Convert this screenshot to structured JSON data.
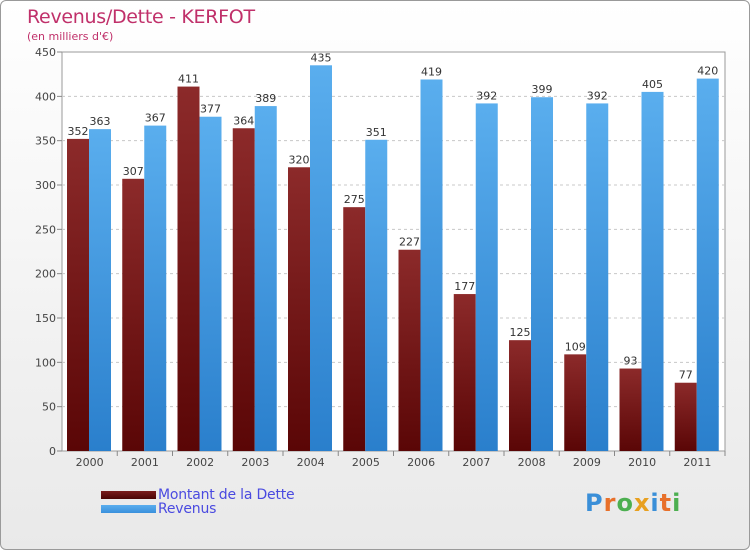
{
  "chart_data": {
    "type": "bar",
    "title": "Revenus/Dette - KERFOT",
    "subtitle": "(en milliers d'€)",
    "xlabel": "",
    "ylabel": "",
    "ylim": [
      0,
      450
    ],
    "yticks": [
      0,
      50,
      100,
      150,
      200,
      250,
      300,
      350,
      400,
      450
    ],
    "grid": true,
    "categories": [
      "2000",
      "2001",
      "2002",
      "2003",
      "2004",
      "2005",
      "2006",
      "2007",
      "2008",
      "2009",
      "2010",
      "2011"
    ],
    "series": [
      {
        "name": "Montant de la Dette",
        "color": "#7a1c1c",
        "values": [
          352,
          307,
          411,
          364,
          320,
          275,
          227,
          177,
          125,
          109,
          93,
          77
        ]
      },
      {
        "name": "Revenus",
        "color": "#3f9de6",
        "values": [
          363,
          367,
          377,
          389,
          435,
          351,
          419,
          392,
          399,
          392,
          405,
          420
        ]
      }
    ]
  },
  "branding": {
    "logo_letters": [
      "P",
      "r",
      "o",
      "x",
      "i",
      "t",
      "i"
    ],
    "logo_colors": [
      "#3a8fd8",
      "#e8702a",
      "#4caf50",
      "#e8a020",
      "#3a8fd8",
      "#e8702a",
      "#4caf50"
    ]
  }
}
